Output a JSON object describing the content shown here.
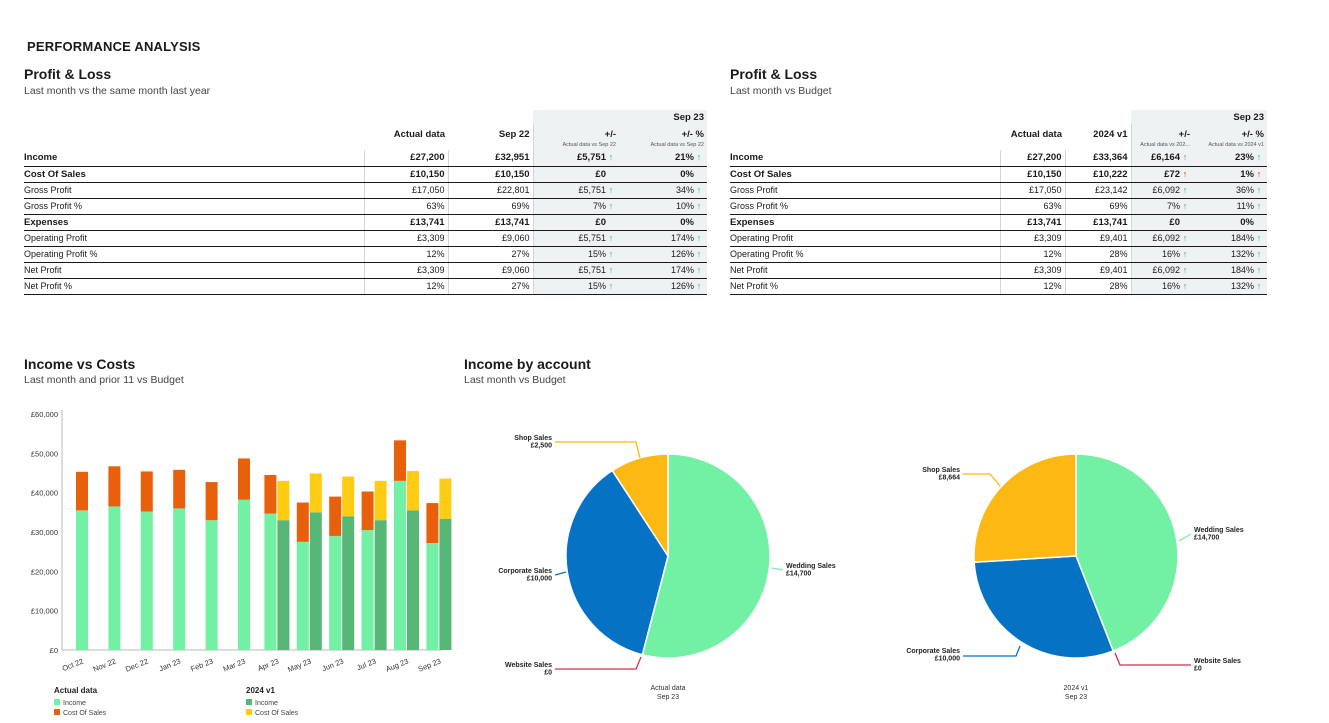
{
  "page_title": "PERFORMANCE ANALYSIS",
  "pl1": {
    "title": "Profit & Loss",
    "subtitle": "Last month vs the same month last year",
    "period": "Sep 23",
    "columns": [
      "Actual data",
      "Sep 22",
      "+/-",
      "+/- %"
    ],
    "subcols": [
      "Actual data vs Sep 22",
      "Actual data vs Sep 22"
    ],
    "rows": [
      {
        "label": "Income",
        "bold": true,
        "a": "£27,200",
        "b": "£32,951",
        "d": "£5,751",
        "da": "up",
        "p": "21%",
        "pa": "up"
      },
      {
        "label": "Cost Of Sales",
        "bold": true,
        "a": "£10,150",
        "b": "£10,150",
        "d": "£0",
        "da": "",
        "p": "0%",
        "pa": ""
      },
      {
        "label": "Gross Profit",
        "bold": false,
        "a": "£17,050",
        "b": "£22,801",
        "d": "£5,751",
        "da": "up",
        "p": "34%",
        "pa": "up"
      },
      {
        "label": "Gross Profit %",
        "bold": false,
        "a": "63%",
        "b": "69%",
        "d": "7%",
        "da": "up",
        "p": "10%",
        "pa": "up"
      },
      {
        "label": "Expenses",
        "bold": true,
        "a": "£13,741",
        "b": "£13,741",
        "d": "£0",
        "da": "",
        "p": "0%",
        "pa": ""
      },
      {
        "label": "Operating Profit",
        "bold": false,
        "a": "£3,309",
        "b": "£9,060",
        "d": "£5,751",
        "da": "up",
        "p": "174%",
        "pa": "up"
      },
      {
        "label": "Operating Profit %",
        "bold": false,
        "a": "12%",
        "b": "27%",
        "d": "15%",
        "da": "up",
        "p": "126%",
        "pa": "up"
      },
      {
        "label": "Net Profit",
        "bold": false,
        "a": "£3,309",
        "b": "£9,060",
        "d": "£5,751",
        "da": "up",
        "p": "174%",
        "pa": "up"
      },
      {
        "label": "Net Profit %",
        "bold": false,
        "a": "12%",
        "b": "27%",
        "d": "15%",
        "da": "up",
        "p": "126%",
        "pa": "up"
      }
    ]
  },
  "pl2": {
    "title": "Profit & Loss",
    "subtitle": "Last month vs Budget",
    "period": "Sep 23",
    "columns": [
      "Actual data",
      "2024 v1",
      "+/-",
      "+/- %"
    ],
    "subcols": [
      "Actual data vs 202...",
      "Actual data vs 2024 v1"
    ],
    "rows": [
      {
        "label": "Income",
        "bold": true,
        "a": "£27,200",
        "b": "£33,364",
        "d": "£6,164",
        "da": "up",
        "p": "23%",
        "pa": "up"
      },
      {
        "label": "Cost Of Sales",
        "bold": true,
        "a": "£10,150",
        "b": "£10,222",
        "d": "£72",
        "da": "red",
        "p": "1%",
        "pa": "red"
      },
      {
        "label": "Gross Profit",
        "bold": false,
        "a": "£17,050",
        "b": "£23,142",
        "d": "£6,092",
        "da": "up",
        "p": "36%",
        "pa": "up"
      },
      {
        "label": "Gross Profit %",
        "bold": false,
        "a": "63%",
        "b": "69%",
        "d": "7%",
        "da": "up",
        "p": "11%",
        "pa": "up"
      },
      {
        "label": "Expenses",
        "bold": true,
        "a": "£13,741",
        "b": "£13,741",
        "d": "£0",
        "da": "",
        "p": "0%",
        "pa": ""
      },
      {
        "label": "Operating Profit",
        "bold": false,
        "a": "£3,309",
        "b": "£9,401",
        "d": "£6,092",
        "da": "up",
        "p": "184%",
        "pa": "up"
      },
      {
        "label": "Operating Profit %",
        "bold": false,
        "a": "12%",
        "b": "28%",
        "d": "16%",
        "da": "up",
        "p": "132%",
        "pa": "up"
      },
      {
        "label": "Net Profit",
        "bold": false,
        "a": "£3,309",
        "b": "£9,401",
        "d": "£6,092",
        "da": "up",
        "p": "184%",
        "pa": "up"
      },
      {
        "label": "Net Profit %",
        "bold": false,
        "a": "12%",
        "b": "28%",
        "d": "16%",
        "da": "up",
        "p": "132%",
        "pa": "up"
      }
    ]
  },
  "arrows": {
    "up": "↑",
    "red": "↑"
  },
  "colors": {
    "actual_income": "#72f0a4",
    "actual_cost": "#e8600c",
    "budget_income": "#56b777",
    "budget_cost": "#ffcc14",
    "wedding": "#72f0a4",
    "corporate": "#0672c4",
    "shop": "#fdb813",
    "website": "#d62f45",
    "up_arrow": "#2fae7a",
    "red_arrow": "#d9262c"
  },
  "bar_section": {
    "title": "Income vs Costs",
    "subtitle": "Last month and prior 11 vs Budget"
  },
  "pie_section": {
    "title": "Income by account",
    "subtitle": "Last month vs Budget"
  },
  "chart_data": [
    {
      "type": "bar",
      "title": "Income vs Costs",
      "subtitle": "Last month and prior 11 vs Budget",
      "categories": [
        "Oct 22",
        "Nov 22",
        "Dec 22",
        "Jan 23",
        "Feb 23",
        "Mar 23",
        "Apr 23",
        "May 23",
        "Jun 23",
        "Jul 23",
        "Aug 23",
        "Sep 23"
      ],
      "ylim": [
        0,
        60000
      ],
      "yticks": [
        "£0",
        "£10,000",
        "£20,000",
        "£30,000",
        "£40,000",
        "£50,000",
        "£60,000"
      ],
      "stacked": true,
      "grid": false,
      "legend_groups": [
        {
          "title": "Actual data",
          "items": [
            "Income",
            "Cost Of Sales"
          ]
        },
        {
          "title": "2024 v1",
          "items": [
            "Income",
            "Cost Of Sales"
          ]
        }
      ],
      "series": [
        {
          "name": "Income",
          "group": "Actual data",
          "values": [
            35500,
            36500,
            35200,
            36000,
            33000,
            38200,
            34700,
            27500,
            29000,
            30500,
            43000,
            27200
          ]
        },
        {
          "name": "Cost Of Sales",
          "group": "Actual data",
          "values": [
            9800,
            10200,
            10200,
            9800,
            9700,
            10500,
            9800,
            10000,
            10000,
            9800,
            10300,
            10150
          ]
        },
        {
          "name": "Income",
          "group": "2024 v1",
          "values": [
            null,
            null,
            null,
            null,
            null,
            null,
            33000,
            35000,
            34000,
            33000,
            35500,
            33364
          ]
        },
        {
          "name": "Cost Of Sales",
          "group": "2024 v1",
          "values": [
            null,
            null,
            null,
            null,
            null,
            null,
            10000,
            9900,
            10100,
            10000,
            10000,
            10222
          ]
        }
      ]
    },
    {
      "type": "pie",
      "label": "Actual data\nSep 23",
      "label_lines": [
        "Actual data",
        "Sep 23"
      ],
      "slices": [
        {
          "name": "Wedding Sales",
          "value": 14700,
          "text": "£14,700"
        },
        {
          "name": "Website Sales",
          "value": 0,
          "text": "£0"
        },
        {
          "name": "Corporate Sales",
          "value": 10000,
          "text": "£10,000"
        },
        {
          "name": "Shop Sales",
          "value": 2500,
          "text": "£2,500"
        }
      ]
    },
    {
      "type": "pie",
      "label": "2024 v1\nSep 23",
      "label_lines": [
        "2024 v1",
        "Sep 23"
      ],
      "slices": [
        {
          "name": "Wedding Sales",
          "value": 14700,
          "text": "£14,700"
        },
        {
          "name": "Website Sales",
          "value": 0,
          "text": "£0"
        },
        {
          "name": "Corporate Sales",
          "value": 10000,
          "text": "£10,000"
        },
        {
          "name": "Shop Sales",
          "value": 8664,
          "text": "£8,664"
        }
      ]
    }
  ]
}
